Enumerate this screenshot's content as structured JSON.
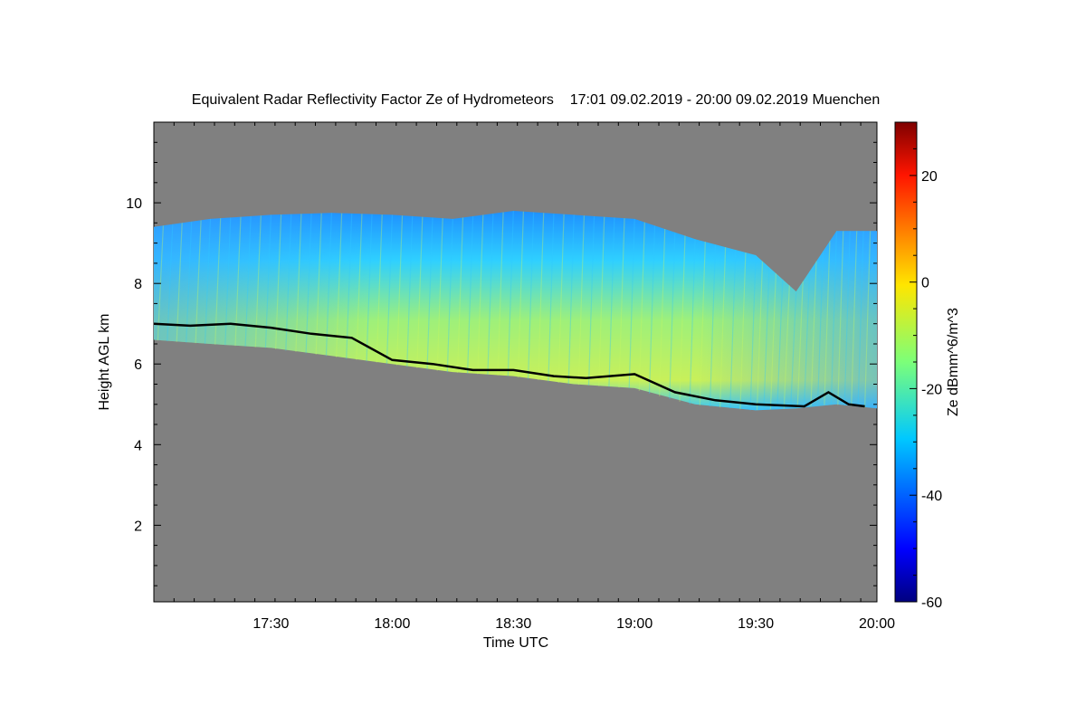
{
  "chart_data": {
    "type": "heatmap",
    "title": "Equivalent Radar Reflectivity Factor Ze of Hydrometeors    17:01 09.02.2019 - 20:00 09.02.2019 Muenchen",
    "xlabel": "Time UTC",
    "ylabel": "Height AGL km",
    "x_tick_labels": [
      "17:30",
      "18:00",
      "18:30",
      "19:00",
      "19:30",
      "20:00"
    ],
    "x_tick_values_min": [
      1050,
      1080,
      1110,
      1140,
      1170,
      1200
    ],
    "xlim_min": [
      1021,
      1200
    ],
    "y_tick_labels": [
      "2",
      "4",
      "6",
      "8",
      "10"
    ],
    "y_tick_values": [
      2,
      4,
      6,
      8,
      10
    ],
    "ylim": [
      0.1,
      12
    ],
    "background_color": "#808080",
    "colorbar": {
      "label": "Ze dBmm^6/m^3",
      "range": [
        -60,
        30
      ],
      "tick_labels": [
        "-60",
        "-40",
        "-20",
        "0",
        "20"
      ],
      "tick_values": [
        -60,
        -40,
        -20,
        0,
        20
      ],
      "colormap": "jet"
    },
    "echo_layer": {
      "description": "Contiguous precipitation/cloud echo field",
      "time_min": [
        1021,
        1035,
        1050,
        1065,
        1080,
        1095,
        1110,
        1125,
        1140,
        1155,
        1170,
        1180,
        1190,
        1200
      ],
      "top_km": [
        9.4,
        9.6,
        9.7,
        9.75,
        9.7,
        9.6,
        9.8,
        9.7,
        9.6,
        9.1,
        8.7,
        7.8,
        9.3,
        9.3
      ],
      "base_km": [
        6.6,
        6.5,
        6.4,
        6.2,
        6.0,
        5.8,
        5.7,
        5.5,
        5.4,
        5.0,
        4.85,
        4.9,
        5.0,
        4.9
      ],
      "core_ze_dbz": [
        -28,
        -22,
        -18,
        -15,
        -14,
        -13,
        -12,
        -11,
        -13,
        -18,
        -22,
        -26,
        -28,
        -30
      ]
    },
    "melting_layer_line": {
      "description": "Black line tracing the echo base",
      "time_min": [
        1021,
        1030,
        1040,
        1050,
        1060,
        1070,
        1080,
        1090,
        1100,
        1110,
        1120,
        1128,
        1140,
        1150,
        1160,
        1170,
        1182,
        1188,
        1193,
        1197
      ],
      "height_km": [
        7.0,
        6.95,
        7.0,
        6.9,
        6.75,
        6.65,
        6.1,
        6.0,
        5.85,
        5.85,
        5.7,
        5.65,
        5.75,
        5.3,
        5.1,
        5.0,
        4.95,
        5.3,
        5.0,
        4.95
      ]
    }
  }
}
